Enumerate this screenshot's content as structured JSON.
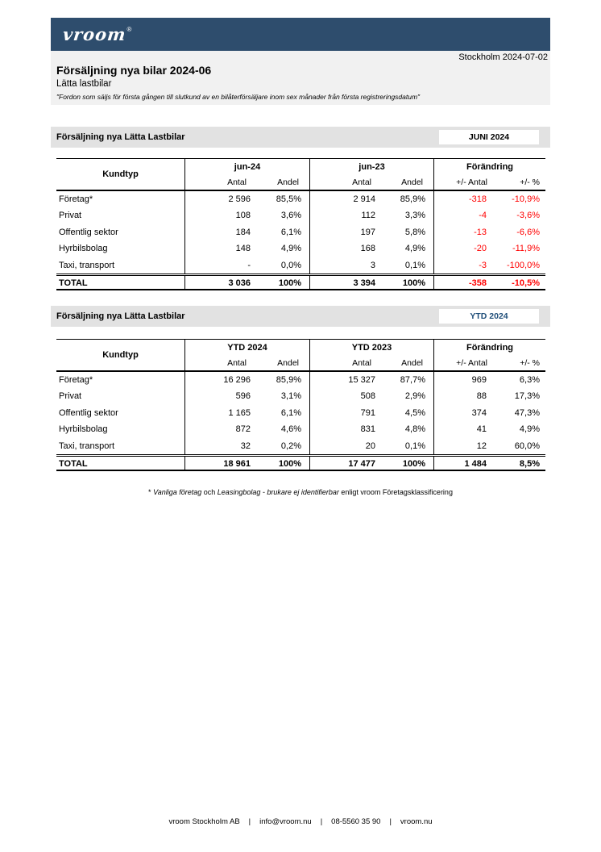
{
  "header": {
    "logo": "vroom",
    "logo_reg": "®",
    "dateline": "Stockholm 2024-07-02",
    "title": "Försäljning nya bilar 2024-06",
    "subtitle": "Lätta lastbilar",
    "quote": "\"Fordon som säljs för första gången till slutkund av en bilåterförsäljare inom sex månader från första registreringsdatum\""
  },
  "colors": {
    "navy": "#2e4d6d",
    "band_light": "#f1f1f1",
    "band_gray": "#e2e2e2",
    "negative": "#ff0000",
    "ytd_accent": "#1f4e79"
  },
  "tables": [
    {
      "band_title": "Försäljning nya Lätta Lastbilar",
      "badge": "JUNI 2024",
      "columns": {
        "label": "Kundtyp",
        "group1": "jun-24",
        "group2": "jun-23",
        "group3": "Förändring",
        "antal": "Antal",
        "andel": "Andel",
        "pm_antal": "+/- Antal",
        "pm_pct": "+/- %"
      },
      "rows": [
        {
          "label": "Företag*",
          "a1": "2 596",
          "p1": "85,5%",
          "a2": "2 914",
          "p2": "85,9%",
          "d": "-318",
          "dp": "-10,9%"
        },
        {
          "label": "Privat",
          "a1": "108",
          "p1": "3,6%",
          "a2": "112",
          "p2": "3,3%",
          "d": "-4",
          "dp": "-3,6%"
        },
        {
          "label": "Offentlig sektor",
          "a1": "184",
          "p1": "6,1%",
          "a2": "197",
          "p2": "5,8%",
          "d": "-13",
          "dp": "-6,6%"
        },
        {
          "label": "Hyrbilsbolag",
          "a1": "148",
          "p1": "4,9%",
          "a2": "168",
          "p2": "4,9%",
          "d": "-20",
          "dp": "-11,9%"
        },
        {
          "label": "Taxi, transport",
          "a1": "-",
          "p1": "0,0%",
          "a2": "3",
          "p2": "0,1%",
          "d": "-3",
          "dp": "-100,0%"
        }
      ],
      "total": {
        "label": "TOTAL",
        "a1": "3 036",
        "p1": "100%",
        "a2": "3 394",
        "p2": "100%",
        "d": "-358",
        "dp": "-10,5%"
      }
    },
    {
      "band_title": "Försäljning nya Lätta Lastbilar",
      "badge": "YTD 2024",
      "columns": {
        "label": "Kundtyp",
        "group1": "YTD 2024",
        "group2": "YTD 2023",
        "group3": "Förändring",
        "antal": "Antal",
        "andel": "Andel",
        "pm_antal": "+/- Antal",
        "pm_pct": "+/- %"
      },
      "rows": [
        {
          "label": "Företag*",
          "a1": "16 296",
          "p1": "85,9%",
          "a2": "15 327",
          "p2": "87,7%",
          "d": "969",
          "dp": "6,3%"
        },
        {
          "label": "Privat",
          "a1": "596",
          "p1": "3,1%",
          "a2": "508",
          "p2": "2,9%",
          "d": "88",
          "dp": "17,3%"
        },
        {
          "label": "Offentlig sektor",
          "a1": "1 165",
          "p1": "6,1%",
          "a2": "791",
          "p2": "4,5%",
          "d": "374",
          "dp": "47,3%"
        },
        {
          "label": "Hyrbilsbolag",
          "a1": "872",
          "p1": "4,6%",
          "a2": "831",
          "p2": "4,8%",
          "d": "41",
          "dp": "4,9%"
        },
        {
          "label": "Taxi, transport",
          "a1": "32",
          "p1": "0,2%",
          "a2": "20",
          "p2": "0,1%",
          "d": "12",
          "dp": "60,0%"
        }
      ],
      "total": {
        "label": "TOTAL",
        "a1": "18 961",
        "p1": "100%",
        "a2": "17 477",
        "p2": "100%",
        "d": "1 484",
        "dp": "8,5%"
      }
    }
  ],
  "footnote": {
    "star": "* ",
    "italic1": "Vanliga företag",
    "plain1": " och ",
    "italic2": "Leasingbolag - brukare ej identifierbar",
    "plain2": " enligt vroom Företagsklassificering"
  },
  "footer": {
    "company": "vroom Stockholm AB",
    "email": "info@vroom.nu",
    "phone": "08-5560 35 90",
    "website": "vroom.nu",
    "separator": "|"
  }
}
